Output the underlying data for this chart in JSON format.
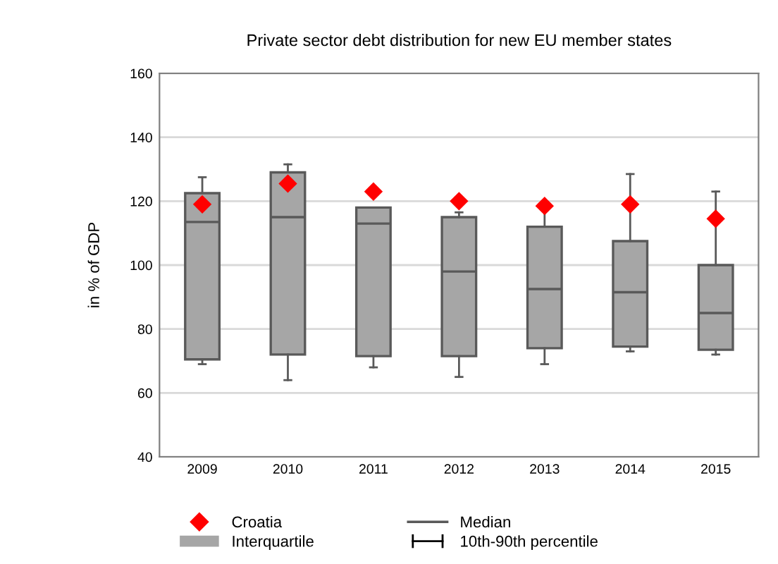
{
  "chart_data": {
    "type": "box",
    "title": "Private sector debt distribution for new EU member states",
    "ylabel": "in % of GDP",
    "categories": [
      "2009",
      "2010",
      "2011",
      "2012",
      "2013",
      "2014",
      "2015"
    ],
    "series": [
      {
        "color": "#a6a6a6",
        "boxes": [
          {
            "low": 69,
            "q1": 70.5,
            "median": 113.5,
            "q3": 122.5,
            "high": 127.5
          },
          {
            "low": 64,
            "q1": 72,
            "median": 115,
            "q3": 129,
            "high": 131.5
          },
          {
            "low": 68,
            "q1": 71.5,
            "median": 113,
            "q3": 118,
            "high": 118
          },
          {
            "low": 65,
            "q1": 71.5,
            "median": 98,
            "q3": 115,
            "high": 116.5
          },
          {
            "low": 69,
            "q1": 74,
            "median": 92.5,
            "q3": 112,
            "high": 118
          },
          {
            "low": 73,
            "q1": 74.5,
            "median": 91.5,
            "q3": 107.5,
            "high": 128.5
          },
          {
            "low": 72,
            "q1": 73.5,
            "median": 85,
            "q3": 100,
            "high": 123
          }
        ]
      },
      {
        "type": "scatter",
        "name": "Croatia",
        "color": "#ff0000",
        "marker": "diamond",
        "values": [
          119,
          125.5,
          123,
          120,
          118.5,
          119,
          114.5
        ]
      }
    ],
    "annotations": [
      "Median",
      "Interquartile",
      "10th-90th percentile"
    ],
    "ylim": [
      40,
      160
    ],
    "yticks": [
      40,
      60,
      80,
      100,
      120,
      140,
      160
    ],
    "grid": "y",
    "legend": "bottom"
  }
}
